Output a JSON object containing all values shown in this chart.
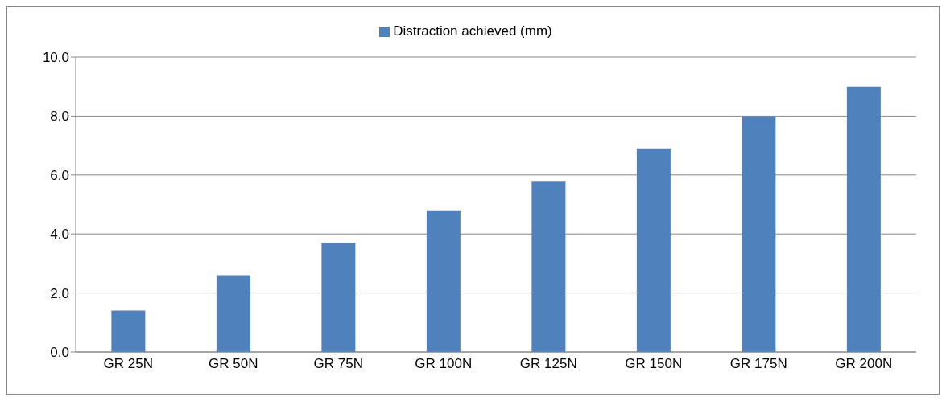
{
  "chart_data": {
    "type": "bar",
    "categories": [
      "GR 25N",
      "GR 50N",
      "GR 75N",
      "GR 100N",
      "GR 125N",
      "GR 150N",
      "GR 175N",
      "GR 200N"
    ],
    "series": [
      {
        "name": "Distraction achieved (mm)",
        "color": "#4f81bd",
        "values": [
          1.4,
          2.6,
          3.7,
          4.8,
          5.8,
          6.9,
          8.0,
          9.0
        ]
      }
    ],
    "ylim": [
      0,
      10
    ],
    "yticks": [
      {
        "value": 0,
        "label": "0.0"
      },
      {
        "value": 2,
        "label": "2.0"
      },
      {
        "value": 4,
        "label": "4.0"
      },
      {
        "value": 6,
        "label": "6.0"
      },
      {
        "value": 8,
        "label": "8.0"
      },
      {
        "value": 10,
        "label": "10.0"
      }
    ],
    "grid": "y",
    "legend": "top"
  }
}
